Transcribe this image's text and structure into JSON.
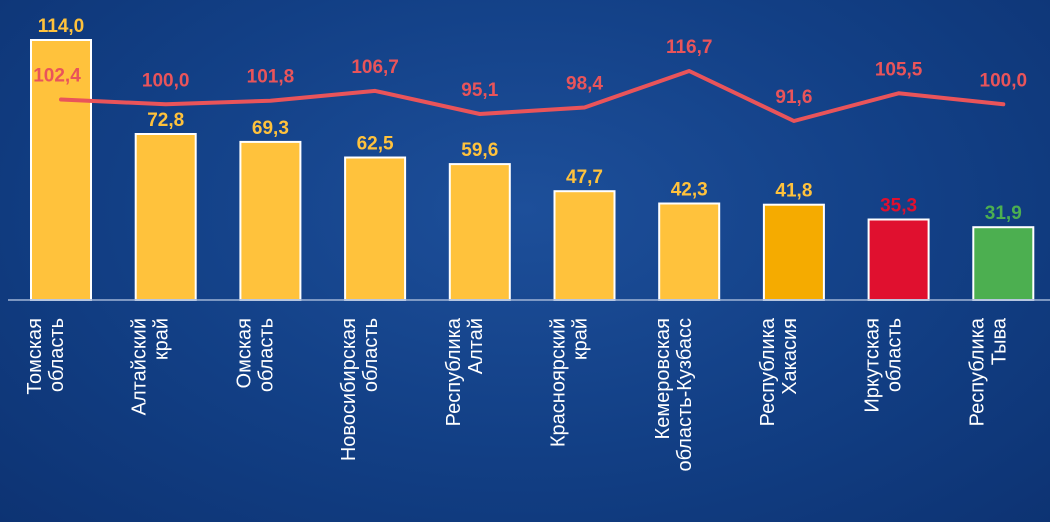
{
  "chart_data": {
    "type": "bar",
    "categories": [
      [
        "Томская",
        "область"
      ],
      [
        "Алтайский",
        "край"
      ],
      [
        "Омская",
        "область"
      ],
      [
        "Новосибирская",
        "область"
      ],
      [
        "Республика",
        "Алтай"
      ],
      [
        "Красноярский",
        "край"
      ],
      [
        "Кемеровская",
        "область-Кузбасс"
      ],
      [
        "Республика",
        "Хакасия"
      ],
      [
        "Иркутская",
        "область"
      ],
      [
        "Республика",
        "Тыва"
      ]
    ],
    "bar_values": [
      114.0,
      72.8,
      69.3,
      62.5,
      59.6,
      47.7,
      42.3,
      41.8,
      35.3,
      31.9
    ],
    "bar_labels": [
      "114,0",
      "72,8",
      "69,3",
      "62,5",
      "59,6",
      "47,7",
      "42,3",
      "41,8",
      "35,3",
      "31,9"
    ],
    "bar_colors": [
      "#ffc23c",
      "#ffc23c",
      "#ffc23c",
      "#ffc23c",
      "#ffc23c",
      "#ffc23c",
      "#ffc23c",
      "#f5ab00",
      "#e0102f",
      "#4caf50"
    ],
    "bar_label_colors": [
      "#ffc23c",
      "#ffc23c",
      "#ffc23c",
      "#ffc23c",
      "#ffc23c",
      "#ffc23c",
      "#ffc23c",
      "#ffc23c",
      "#e0102f",
      "#4caf50"
    ],
    "line_values": [
      102.4,
      100.0,
      101.8,
      106.7,
      95.1,
      98.4,
      116.7,
      91.6,
      105.5,
      100.0
    ],
    "line_labels": [
      "102,4",
      "100,0",
      "101,8",
      "106,7",
      "95,1",
      "98,4",
      "116,7",
      "91,6",
      "105,5",
      "100,0"
    ],
    "line_color": "#e9545a",
    "bar_ylim": [
      0,
      114
    ],
    "line_ylim": [
      91.6,
      116.7
    ]
  }
}
